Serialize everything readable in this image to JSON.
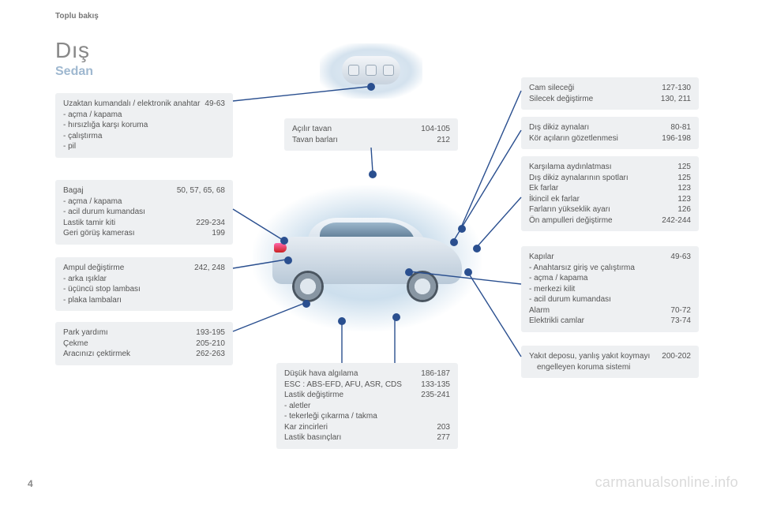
{
  "header_label": "Toplu bakış",
  "page_title": "Dış",
  "page_subtitle": "Sedan",
  "page_number": "4",
  "watermark": "carmanualsonline.info",
  "colors": {
    "box_bg": "#eef0f2",
    "text": "#555555",
    "subtitle": "#9fb8d0",
    "line": "#2a4f8f",
    "page_bg": "#ffffff"
  },
  "boxes": {
    "remote": {
      "rows": [
        {
          "label": "Uzaktan kumandalı / elektronik anahtar",
          "page": "49-63",
          "wrap_indent": true
        },
        {
          "label": "-   açma / kapama"
        },
        {
          "label": "-   hırsızlığa karşı koruma"
        },
        {
          "label": "-   çalıştırma"
        },
        {
          "label": "-   pil"
        }
      ]
    },
    "trunk": {
      "rows": [
        {
          "label": "Bagaj",
          "page": "50, 57, 65, 68"
        },
        {
          "label": "-   açma / kapama"
        },
        {
          "label": "-   acil durum kumandası"
        },
        {
          "label": "Lastik tamir kiti",
          "page": "229-234"
        },
        {
          "label": "Geri görüş kamerası",
          "page": "199"
        }
      ]
    },
    "bulb": {
      "rows": [
        {
          "label": "Ampul değiştirme",
          "page": "242, 248"
        },
        {
          "label": "-   arka ışıklar"
        },
        {
          "label": "-   üçüncü stop lambası"
        },
        {
          "label": "-   plaka lambaları"
        }
      ]
    },
    "park": {
      "rows": [
        {
          "label": "Park yardımı",
          "page": "193-195"
        },
        {
          "label": "Çekme",
          "page": "205-210"
        },
        {
          "label": "Aracınızı çektirmek",
          "page": "262-263"
        }
      ]
    },
    "roof": {
      "rows": [
        {
          "label": "Açılır tavan",
          "page": "104-105"
        },
        {
          "label": "Tavan barları",
          "page": "212"
        }
      ]
    },
    "low": {
      "rows": [
        {
          "label": "Düşük hava algılama",
          "page": "186-187"
        },
        {
          "label": "ESC : ABS-EFD, AFU, ASR, CDS",
          "page": "133-135",
          "wrap_indent": true
        },
        {
          "label": "Lastik değiştirme",
          "page": "235-241"
        },
        {
          "label": "-   aletler"
        },
        {
          "label": "-   tekerleği çıkarma / takma"
        },
        {
          "label": "Kar zincirleri",
          "page": "203"
        },
        {
          "label": "Lastik basınçları",
          "page": "277"
        }
      ]
    },
    "wiper": {
      "rows": [
        {
          "label": "Cam sileceği",
          "page": "127-130"
        },
        {
          "label": "Silecek değiştirme",
          "page": "130, 211"
        }
      ]
    },
    "mirror": {
      "rows": [
        {
          "label": "Dış dikiz aynaları",
          "page": "80-81"
        },
        {
          "label": "Kör açıların gözetlenmesi",
          "page": "196-198"
        }
      ]
    },
    "lights": {
      "rows": [
        {
          "label": "Karşılama aydınlatması",
          "page": "125"
        },
        {
          "label": "Dış dikiz aynalarının spotları",
          "page": "125"
        },
        {
          "label": "Ek farlar",
          "page": "123"
        },
        {
          "label": "İkincil ek farlar",
          "page": "123"
        },
        {
          "label": "Farların yükseklik ayarı",
          "page": "126"
        },
        {
          "label": "Ön ampulleri değiştirme",
          "page": "242-244"
        }
      ]
    },
    "doors": {
      "rows": [
        {
          "label": "Kapılar",
          "page": "49-63"
        },
        {
          "label": "-   Anahtarsız giriş ve çalıştırma"
        },
        {
          "label": "-   açma / kapama"
        },
        {
          "label": "-   merkezi kilit"
        },
        {
          "label": "-   acil durum kumandası"
        },
        {
          "label": "Alarm",
          "page": "70-72"
        },
        {
          "label": "Elektrikli camlar",
          "page": "73-74"
        }
      ]
    },
    "fuel": {
      "rows": [
        {
          "label": "Yakıt deposu, yanlış yakıt koymayı engelleyen koruma sistemi",
          "page": "200-202",
          "wrap_indent": true
        }
      ]
    }
  }
}
